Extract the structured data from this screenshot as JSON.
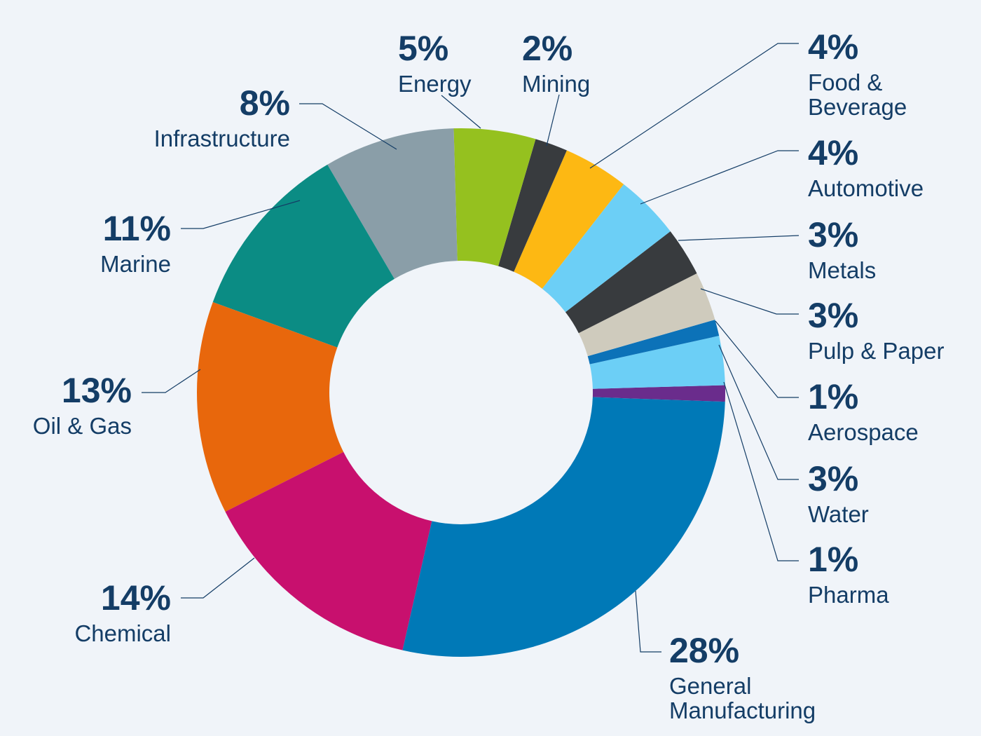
{
  "chart_data": {
    "type": "pie",
    "variant": "donut",
    "title": "",
    "start_angle_deg": 90,
    "direction": "counterclockwise",
    "slices": [
      {
        "name": "Pharma",
        "value": 1,
        "label_pct": "1%",
        "label": [
          "Pharma"
        ],
        "color": "#6a2c8c"
      },
      {
        "name": "Water",
        "value": 3,
        "label_pct": "3%",
        "label": [
          "Water"
        ],
        "color": "#6ccff6"
      },
      {
        "name": "Aerospace",
        "value": 1,
        "label_pct": "1%",
        "label": [
          "Aerospace"
        ],
        "color": "#0c72b8"
      },
      {
        "name": "Pulp & Paper",
        "value": 3,
        "label_pct": "3%",
        "label": [
          "Pulp & Paper"
        ],
        "color": "#cfcbbd"
      },
      {
        "name": "Metals",
        "value": 3,
        "label_pct": "3%",
        "label": [
          "Metals"
        ],
        "color": "#383b3e"
      },
      {
        "name": "Automotive",
        "value": 4,
        "label_pct": "4%",
        "label": [
          "Automotive"
        ],
        "color": "#6ccff6"
      },
      {
        "name": "Food & Beverage",
        "value": 4,
        "label_pct": "4%",
        "label": [
          "Food &",
          "Beverage"
        ],
        "color": "#fdb813"
      },
      {
        "name": "Mining",
        "value": 2,
        "label_pct": "2%",
        "label": [
          "Mining"
        ],
        "color": "#383b3e"
      },
      {
        "name": "Energy",
        "value": 5,
        "label_pct": "5%",
        "label": [
          "Energy"
        ],
        "color": "#95c11f"
      },
      {
        "name": "Infrastructure",
        "value": 8,
        "label_pct": "8%",
        "label": [
          "Infrastructure"
        ],
        "color": "#8a9ea8"
      },
      {
        "name": "Marine",
        "value": 11,
        "label_pct": "11%",
        "label": [
          "Marine"
        ],
        "color": "#0b8c84"
      },
      {
        "name": "Oil & Gas",
        "value": 13,
        "label_pct": "13%",
        "label": [
          "Oil & Gas"
        ],
        "color": "#e8670c"
      },
      {
        "name": "Chemical",
        "value": 14,
        "label_pct": "14%",
        "label": [
          "Chemical"
        ],
        "color": "#c8106e"
      },
      {
        "name": "General Manufacturing",
        "value": 28,
        "label_pct": "28%",
        "label": [
          "General",
          "Manufacturing"
        ],
        "color": "#0079b7"
      }
    ]
  }
}
